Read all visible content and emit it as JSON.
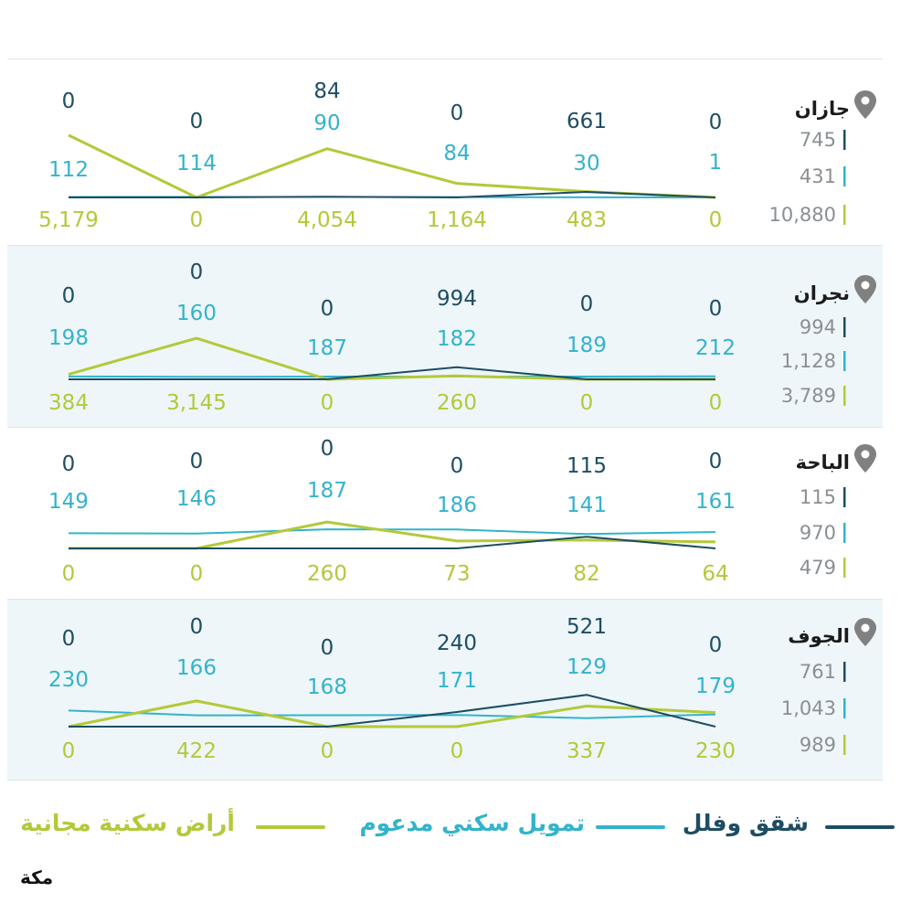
{
  "colors": {
    "apartments": "#1e4d63",
    "financing": "#33b3cc",
    "land": "#b3c93a",
    "pin": "#808080"
  },
  "legend": {
    "apartments": "شقق وفلل",
    "financing": "تمويل سكني مدعوم",
    "land": "أراض سكنية مجانية"
  },
  "logo": "مكة",
  "chart_data": [
    {
      "type": "line",
      "region": "جازان",
      "totals": {
        "apartments": "745",
        "financing": "431",
        "land": "10,880"
      },
      "series": [
        {
          "key": "apartments",
          "name": "شقق وفلل",
          "values": [
            0,
            0,
            84,
            0,
            661,
            0
          ],
          "labels": [
            "0",
            "0",
            "84",
            "0",
            "661",
            "0"
          ]
        },
        {
          "key": "financing",
          "name": "تمويل سكني مدعوم",
          "values": [
            112,
            114,
            90,
            84,
            30,
            1
          ],
          "labels": [
            "112",
            "114",
            "90",
            "84",
            "30",
            "1"
          ]
        },
        {
          "key": "land",
          "name": "أراض سكنية مجانية",
          "values": [
            5179,
            0,
            4054,
            1164,
            483,
            0
          ],
          "labels": [
            "5,179",
            "0",
            "4,054",
            "1,164",
            "483",
            "0"
          ]
        }
      ]
    },
    {
      "type": "line",
      "region": "نجران",
      "totals": {
        "apartments": "994",
        "financing": "1,128",
        "land": "3,789"
      },
      "series": [
        {
          "key": "apartments",
          "name": "شقق وفلل",
          "values": [
            0,
            0,
            0,
            994,
            0,
            0
          ],
          "labels": [
            "0",
            "0",
            "0",
            "994",
            "0",
            "0"
          ]
        },
        {
          "key": "financing",
          "name": "تمويل سكني مدعوم",
          "values": [
            198,
            160,
            187,
            182,
            189,
            212
          ],
          "labels": [
            "198",
            "160",
            "187",
            "182",
            "189",
            "212"
          ]
        },
        {
          "key": "land",
          "name": "أراض سكنية مجانية",
          "values": [
            384,
            3145,
            0,
            260,
            0,
            0
          ],
          "labels": [
            "384",
            "3,145",
            "0",
            "260",
            "0",
            "0"
          ]
        }
      ]
    },
    {
      "type": "line",
      "region": "الباحة",
      "totals": {
        "apartments": "115",
        "financing": "970",
        "land": "479"
      },
      "series": [
        {
          "key": "apartments",
          "name": "شقق وفلل",
          "values": [
            0,
            0,
            0,
            0,
            115,
            0
          ],
          "labels": [
            "0",
            "0",
            "0",
            "0",
            "115",
            "0"
          ]
        },
        {
          "key": "financing",
          "name": "تمويل سكني مدعوم",
          "values": [
            149,
            146,
            187,
            186,
            141,
            161
          ],
          "labels": [
            "149",
            "146",
            "187",
            "186",
            "141",
            "161"
          ]
        },
        {
          "key": "land",
          "name": "أراض سكنية مجانية",
          "values": [
            0,
            0,
            260,
            73,
            82,
            64
          ],
          "labels": [
            "0",
            "0",
            "260",
            "73",
            "82",
            "64"
          ]
        }
      ]
    },
    {
      "type": "line",
      "region": "الجوف",
      "totals": {
        "apartments": "761",
        "financing": "1,043",
        "land": "989"
      },
      "series": [
        {
          "key": "apartments",
          "name": "شقق وفلل",
          "values": [
            0,
            0,
            0,
            240,
            521,
            0
          ],
          "labels": [
            "0",
            "0",
            "0",
            "240",
            "521",
            "0"
          ]
        },
        {
          "key": "financing",
          "name": "تمويل سكني مدعوم",
          "values": [
            230,
            166,
            168,
            171,
            129,
            179
          ],
          "labels": [
            "230",
            "166",
            "168",
            "171",
            "129",
            "179"
          ]
        },
        {
          "key": "land",
          "name": "أراض سكنية مجانية",
          "values": [
            0,
            422,
            0,
            0,
            337,
            230
          ],
          "labels": [
            "0",
            "422",
            "0",
            "0",
            "337",
            "230"
          ]
        }
      ]
    }
  ]
}
